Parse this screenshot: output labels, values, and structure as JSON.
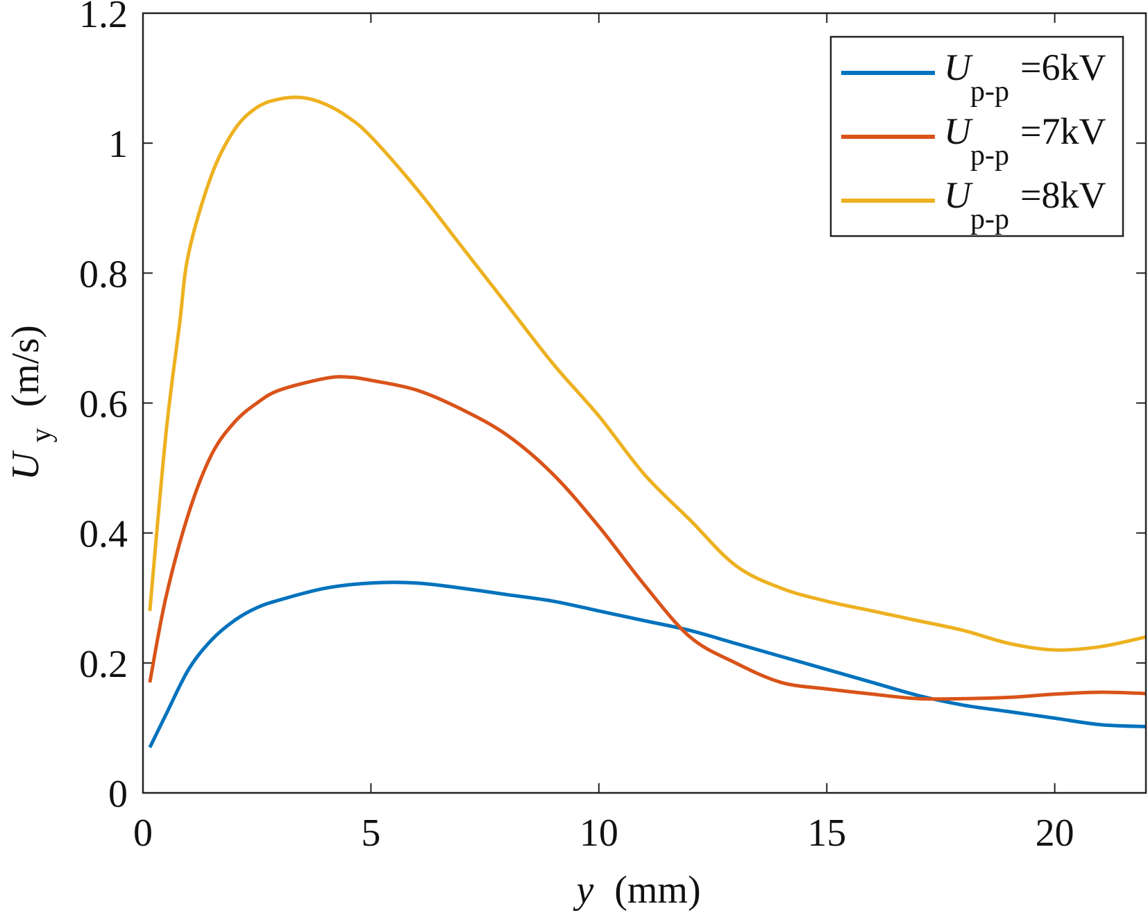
{
  "chart_data": {
    "type": "line",
    "title": "",
    "xlabel": {
      "var": "y",
      "unit": "(mm)"
    },
    "ylabel": {
      "var": "U",
      "sub": "y",
      "unit": "(m/s)"
    },
    "xlim": [
      0,
      22
    ],
    "ylim": [
      0,
      1.2
    ],
    "xticks": [
      0,
      5,
      10,
      15,
      20
    ],
    "xtick_labels": [
      "0",
      "5",
      "10",
      "15",
      "20"
    ],
    "yticks": [
      0,
      0.2,
      0.4,
      0.6,
      0.8,
      1,
      1.2
    ],
    "ytick_labels": [
      "0",
      "0.2",
      "0.4",
      "0.6",
      "0.8",
      "1",
      "1.2"
    ],
    "grid": false,
    "legend_position": "top-right",
    "series": [
      {
        "name": "U p-p =6kV",
        "legend": {
          "var": "U",
          "sub": "p-p",
          "value": "=6kV"
        },
        "color": "#0072BD",
        "x": [
          0.15,
          0.5,
          1,
          1.5,
          2,
          2.5,
          3,
          4,
          5,
          6,
          7,
          8,
          9,
          10,
          11,
          12,
          13,
          14,
          15,
          16,
          17,
          18,
          19,
          20,
          21,
          22
        ],
        "y": [
          0.07,
          0.12,
          0.19,
          0.235,
          0.265,
          0.285,
          0.297,
          0.315,
          0.323,
          0.323,
          0.315,
          0.305,
          0.295,
          0.28,
          0.265,
          0.25,
          0.23,
          0.21,
          0.19,
          0.17,
          0.15,
          0.135,
          0.125,
          0.115,
          0.105,
          0.102
        ]
      },
      {
        "name": "U p-p =7kV",
        "legend": {
          "var": "U",
          "sub": "p-p",
          "value": "=7kV"
        },
        "color": "#D95319",
        "x": [
          0.15,
          0.5,
          1,
          1.5,
          2,
          2.5,
          3,
          4,
          4.5,
          5,
          6,
          7,
          8,
          9,
          10,
          11,
          12,
          13,
          14,
          15,
          16,
          17,
          18,
          19,
          20,
          21,
          22
        ],
        "y": [
          0.17,
          0.3,
          0.43,
          0.52,
          0.57,
          0.6,
          0.62,
          0.638,
          0.64,
          0.635,
          0.62,
          0.59,
          0.55,
          0.49,
          0.41,
          0.32,
          0.24,
          0.2,
          0.17,
          0.16,
          0.152,
          0.145,
          0.145,
          0.147,
          0.152,
          0.155,
          0.153
        ]
      },
      {
        "name": "U p-p =8kV",
        "legend": {
          "var": "U",
          "sub": "p-p",
          "value": "=8kV"
        },
        "color": "#EDB120",
        "x": [
          0.15,
          0.5,
          0.8,
          1,
          1.5,
          2,
          2.5,
          3,
          3.5,
          4,
          4.5,
          5,
          6,
          7,
          8,
          9,
          10,
          11,
          12,
          13,
          14,
          15,
          16,
          17,
          18,
          19,
          20,
          21,
          22
        ],
        "y": [
          0.28,
          0.55,
          0.72,
          0.83,
          0.95,
          1.02,
          1.055,
          1.068,
          1.07,
          1.06,
          1.04,
          1.01,
          0.93,
          0.84,
          0.75,
          0.66,
          0.58,
          0.49,
          0.42,
          0.35,
          0.315,
          0.295,
          0.28,
          0.265,
          0.25,
          0.23,
          0.22,
          0.225,
          0.24
        ]
      }
    ]
  }
}
